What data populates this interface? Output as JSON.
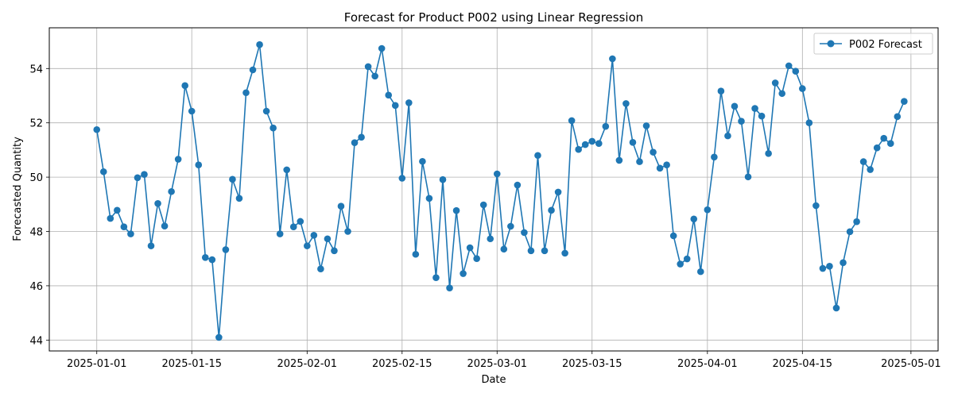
{
  "chart_data": {
    "type": "line",
    "title": "Forecast for Product P002 using Linear Regression",
    "xlabel": "Date",
    "ylabel": "Forecasted Quantity",
    "x_start": "2025-01-01",
    "x_ticks": [
      "2025-01-01",
      "2025-01-15",
      "2025-02-01",
      "2025-02-15",
      "2025-03-01",
      "2025-03-15",
      "2025-04-01",
      "2025-04-15",
      "2025-05-01"
    ],
    "y_ticks": [
      44,
      46,
      48,
      50,
      52,
      54
    ],
    "xlim": [
      "2024-12-25",
      "2025-05-05"
    ],
    "ylim": [
      43.6,
      55.5
    ],
    "grid": true,
    "legend_position": "top-right",
    "series": [
      {
        "name": "P002 Forecast",
        "color": "#1f77b4",
        "marker": "circle",
        "x": [
          "2025-01-01",
          "2025-01-02",
          "2025-01-03",
          "2025-01-04",
          "2025-01-05",
          "2025-01-06",
          "2025-01-07",
          "2025-01-08",
          "2025-01-09",
          "2025-01-10",
          "2025-01-11",
          "2025-01-12",
          "2025-01-13",
          "2025-01-14",
          "2025-01-15",
          "2025-01-16",
          "2025-01-17",
          "2025-01-18",
          "2025-01-19",
          "2025-01-20",
          "2025-01-21",
          "2025-01-22",
          "2025-01-23",
          "2025-01-24",
          "2025-01-25",
          "2025-01-26",
          "2025-01-27",
          "2025-01-28",
          "2025-01-29",
          "2025-01-30",
          "2025-01-31",
          "2025-02-01",
          "2025-02-02",
          "2025-02-03",
          "2025-02-04",
          "2025-02-05",
          "2025-02-06",
          "2025-02-07",
          "2025-02-08",
          "2025-02-09",
          "2025-02-10",
          "2025-02-11",
          "2025-02-12",
          "2025-02-13",
          "2025-02-14",
          "2025-02-15",
          "2025-02-16",
          "2025-02-17",
          "2025-02-18",
          "2025-02-19",
          "2025-02-20",
          "2025-02-21",
          "2025-02-22",
          "2025-02-23",
          "2025-02-24",
          "2025-02-25",
          "2025-02-26",
          "2025-02-27",
          "2025-02-28",
          "2025-03-01",
          "2025-03-02",
          "2025-03-03",
          "2025-03-04",
          "2025-03-05",
          "2025-03-06",
          "2025-03-07",
          "2025-03-08",
          "2025-03-09",
          "2025-03-10",
          "2025-03-11",
          "2025-03-12",
          "2025-03-13",
          "2025-03-14",
          "2025-03-15",
          "2025-03-16",
          "2025-03-17",
          "2025-03-18",
          "2025-03-19",
          "2025-03-20",
          "2025-03-21",
          "2025-03-22",
          "2025-03-23",
          "2025-03-24",
          "2025-03-25",
          "2025-03-26",
          "2025-03-27",
          "2025-03-28",
          "2025-03-29",
          "2025-03-30",
          "2025-03-31",
          "2025-04-01",
          "2025-04-02",
          "2025-04-03",
          "2025-04-04",
          "2025-04-05",
          "2025-04-06",
          "2025-04-07",
          "2025-04-08",
          "2025-04-09",
          "2025-04-10",
          "2025-04-11",
          "2025-04-12",
          "2025-04-13",
          "2025-04-14",
          "2025-04-15",
          "2025-04-16",
          "2025-04-17",
          "2025-04-18",
          "2025-04-19",
          "2025-04-20",
          "2025-04-21",
          "2025-04-22",
          "2025-04-23",
          "2025-04-24",
          "2025-04-25",
          "2025-04-26",
          "2025-04-27",
          "2025-04-28",
          "2025-04-29",
          "2025-04-30"
        ],
        "y": [
          51.75,
          50.2,
          48.48,
          48.78,
          48.17,
          47.91,
          49.98,
          50.1,
          47.47,
          49.03,
          48.2,
          49.47,
          50.66,
          53.37,
          52.43,
          50.45,
          47.04,
          46.96,
          44.1,
          47.33,
          49.92,
          49.22,
          53.11,
          53.95,
          54.88,
          52.43,
          51.81,
          47.91,
          50.27,
          48.17,
          48.37,
          47.47,
          47.86,
          46.62,
          47.73,
          47.29,
          48.93,
          48.0,
          51.27,
          51.47,
          54.07,
          53.72,
          54.74,
          53.02,
          52.64,
          49.96,
          52.74,
          47.16,
          50.58,
          49.22,
          46.3,
          49.91,
          45.92,
          48.77,
          46.45,
          47.4,
          47.0,
          48.98,
          47.73,
          50.12,
          47.35,
          48.19,
          49.71,
          47.96,
          47.29,
          50.8,
          47.29,
          48.78,
          49.45,
          47.2,
          52.08,
          51.02,
          51.2,
          51.32,
          51.24,
          51.87,
          54.36,
          50.62,
          52.71,
          51.28,
          50.57,
          51.89,
          50.92,
          50.33,
          50.45,
          47.84,
          46.8,
          46.99,
          48.46,
          46.52,
          48.8,
          50.74,
          53.17,
          51.52,
          52.61,
          52.06,
          50.01,
          52.53,
          52.25,
          50.87,
          53.47,
          53.08,
          54.1,
          53.9,
          53.26,
          52.0,
          48.95,
          46.64,
          46.72,
          45.18,
          46.85,
          47.99,
          48.36,
          50.57,
          50.28,
          51.08,
          51.43,
          51.24,
          52.23,
          52.79
        ]
      }
    ]
  }
}
